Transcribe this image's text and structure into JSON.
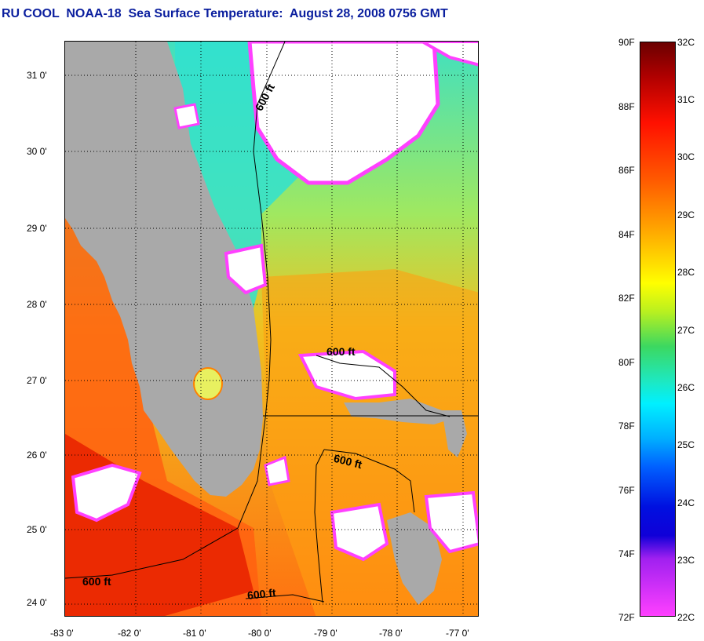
{
  "title": "RU COOL  NOAA-18  Sea Surface Temperature:  August 28, 2008 0756 GMT",
  "map": {
    "lon_labels": [
      "-83 0'",
      "-82 0'",
      "-81 0'",
      "-80 0'",
      "-79 0'",
      "-78 0'",
      "-77 0'"
    ],
    "lat_labels": [
      "31 0'",
      "30 0'",
      "29 0'",
      "28 0'",
      "27 0'",
      "26 0'",
      "25 0'",
      "24 0'"
    ],
    "contour_label": "600 ft",
    "contour_labels": [
      "600 ft",
      "600 ft",
      "600 ft",
      "600 ft",
      "600 ft"
    ],
    "colors": {
      "land": "#a9a9a9",
      "cloud": "#ffffff",
      "warm": "#ff4000",
      "cool": "#20e0e0"
    }
  },
  "colorbar": {
    "fahrenheit": [
      "90F",
      "88F",
      "86F",
      "84F",
      "82F",
      "80F",
      "78F",
      "76F",
      "74F",
      "72F"
    ],
    "celsius": [
      "32C",
      "31C",
      "30C",
      "29C",
      "28C",
      "27C",
      "26C",
      "25C",
      "24C",
      "23C",
      "22C"
    ]
  }
}
